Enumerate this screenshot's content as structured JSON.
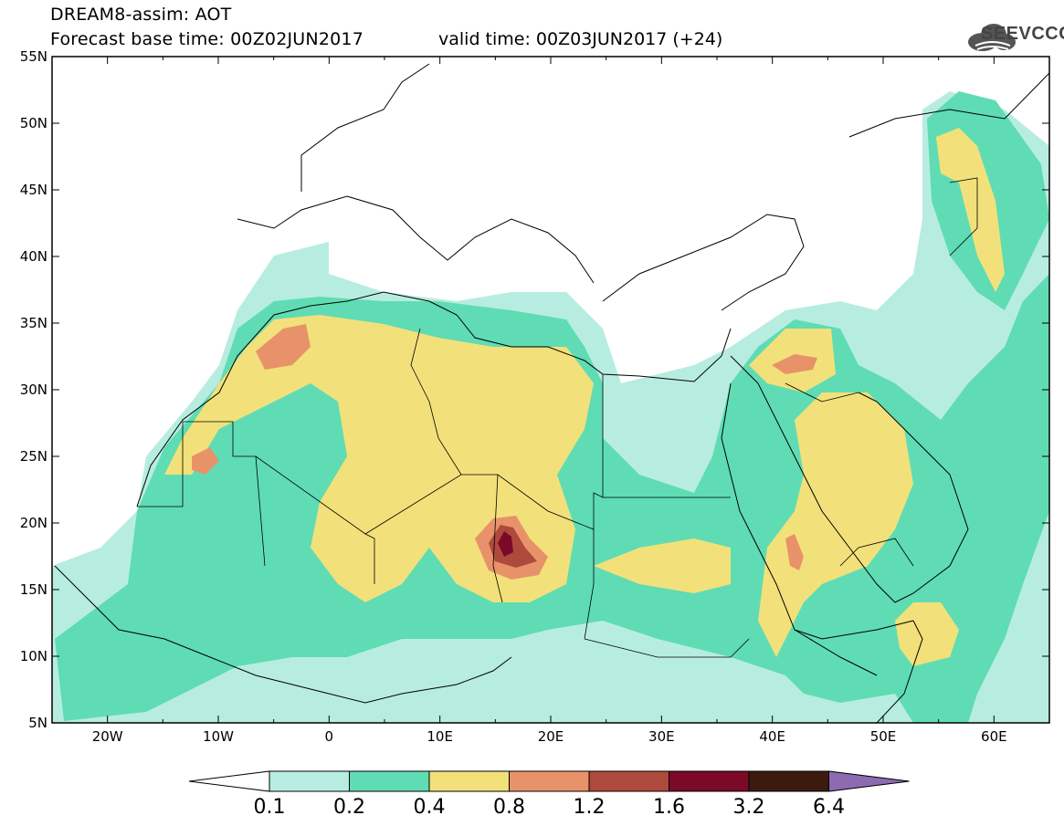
{
  "header": {
    "title_line1": "DREAM8-assim: AOT",
    "title_line2_left": "Forecast base time: 00Z02JUN2017",
    "title_line2_right": "valid time: 00Z03JUN2017 (+24)",
    "logo_text": "SEEVCCC"
  },
  "map": {
    "lat_labels": [
      "55N",
      "50N",
      "45N",
      "40N",
      "35N",
      "30N",
      "25N",
      "20N",
      "15N",
      "10N",
      "5N"
    ],
    "lon_labels": [
      "20W",
      "10W",
      "0",
      "10E",
      "20E",
      "30E",
      "40E",
      "50E",
      "60E"
    ],
    "lat_range": [
      5,
      55
    ],
    "lon_range": [
      -25,
      65
    ]
  },
  "colorbar": {
    "levels": [
      "0.1",
      "0.2",
      "0.4",
      "0.8",
      "1.2",
      "1.6",
      "3.2",
      "6.4"
    ],
    "colors": [
      "#ffffff",
      "#b7ede0",
      "#5fdcb4",
      "#f2e17a",
      "#e8926a",
      "#ae4a3d",
      "#7a0a28",
      "#3b1b10",
      "#8d6bb0"
    ]
  }
}
